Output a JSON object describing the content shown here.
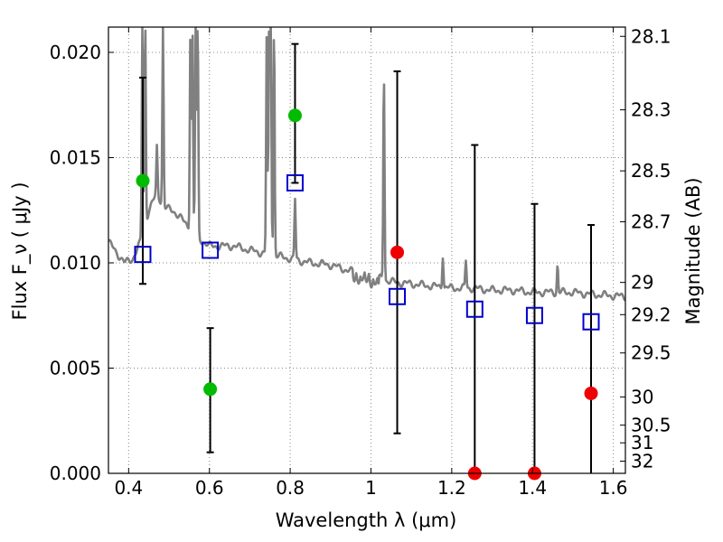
{
  "chart_data": {
    "type": "scatter",
    "xlabel": "Wavelength  λ (μm)",
    "ylabel": "Flux  F_ν  ( μJy )",
    "y2label": "Magnitude (AB)",
    "xlim": [
      0.35,
      1.63
    ],
    "ylim": [
      0.0,
      0.0212
    ],
    "grid": true,
    "x_ticks": [
      0.4,
      0.6,
      0.8,
      1.0,
      1.2,
      1.4,
      1.6
    ],
    "x_tick_labels": [
      "0.4",
      "0.6",
      "0.8",
      "1",
      "1.2",
      "1.4",
      "1.6"
    ],
    "y_ticks": [
      0.0,
      0.005,
      0.01,
      0.015,
      0.02
    ],
    "y_tick_labels": [
      "0.000",
      "0.005",
      "0.010",
      "0.015",
      "0.020"
    ],
    "y2_ticks": [
      {
        "label": "28.1",
        "flux": 0.02076
      },
      {
        "label": "28.3",
        "flux": 0.01727
      },
      {
        "label": "28.5",
        "flux": 0.01437
      },
      {
        "label": "28.7",
        "flux": 0.01195
      },
      {
        "label": "29",
        "flux": 0.00907
      },
      {
        "label": "29.2",
        "flux": 0.00754
      },
      {
        "label": "29.5",
        "flux": 0.00572
      },
      {
        "label": "30",
        "flux": 0.00363
      },
      {
        "label": "30.5",
        "flux": 0.00229
      },
      {
        "label": "31",
        "flux": 0.00145
      },
      {
        "label": "32",
        "flux": 0.00058
      }
    ],
    "colors": {
      "spectrum": "#808080",
      "model_marker": "#0000cc",
      "detection": "#00bb00",
      "low_signal": "#ee0000",
      "errorbar": "#000000",
      "grid": "#888888"
    },
    "spectrum_continuum": [
      [
        0.35,
        0.011
      ],
      [
        0.37,
        0.0105
      ],
      [
        0.39,
        0.01
      ],
      [
        0.41,
        0.0102
      ],
      [
        0.43,
        0.011
      ],
      [
        0.45,
        0.0125
      ],
      [
        0.47,
        0.0133
      ],
      [
        0.49,
        0.0126
      ],
      [
        0.51,
        0.0125
      ],
      [
        0.53,
        0.0121
      ],
      [
        0.55,
        0.0117
      ],
      [
        0.57,
        0.0112
      ],
      [
        0.6,
        0.0108
      ],
      [
        0.63,
        0.0108
      ],
      [
        0.66,
        0.0108
      ],
      [
        0.7,
        0.0106
      ],
      [
        0.75,
        0.0104
      ],
      [
        0.8,
        0.0102
      ],
      [
        0.85,
        0.01
      ],
      [
        0.9,
        0.0099
      ],
      [
        0.95,
        0.0096
      ],
      [
        1.0,
        0.0094
      ],
      [
        1.05,
        0.0091
      ],
      [
        1.1,
        0.009
      ],
      [
        1.15,
        0.0089
      ],
      [
        1.2,
        0.0088
      ],
      [
        1.25,
        0.0088
      ],
      [
        1.3,
        0.0087
      ],
      [
        1.35,
        0.0087
      ],
      [
        1.4,
        0.0086
      ],
      [
        1.45,
        0.0086
      ],
      [
        1.5,
        0.0086
      ],
      [
        1.55,
        0.0085
      ],
      [
        1.63,
        0.0084
      ]
    ],
    "spectrum_emission_lines": [
      {
        "x": 0.434,
        "peak": 0.0212
      },
      {
        "x": 0.441,
        "peak": 0.0215
      },
      {
        "x": 0.47,
        "peak": 0.0155
      },
      {
        "x": 0.485,
        "peak": 0.0212
      },
      {
        "x": 0.553,
        "peak": 0.0212
      },
      {
        "x": 0.558,
        "peak": 0.0212
      },
      {
        "x": 0.566,
        "peak": 0.0212
      },
      {
        "x": 0.571,
        "peak": 0.0212
      },
      {
        "x": 0.742,
        "peak": 0.0212
      },
      {
        "x": 0.748,
        "peak": 0.0212
      },
      {
        "x": 0.752,
        "peak": 0.0212
      },
      {
        "x": 0.76,
        "peak": 0.0212
      },
      {
        "x": 0.812,
        "peak": 0.013
      },
      {
        "x": 1.032,
        "peak": 0.0191
      },
      {
        "x": 1.178,
        "peak": 0.0104
      },
      {
        "x": 1.235,
        "peak": 0.0101
      },
      {
        "x": 1.462,
        "peak": 0.0099
      }
    ],
    "series": [
      {
        "marker": "open-square",
        "x": [
          0.435,
          0.602,
          0.812,
          1.065,
          1.257,
          1.405,
          1.545
        ],
        "values": [
          0.0104,
          0.0106,
          0.0138,
          0.0084,
          0.0078,
          0.0075,
          0.0072
        ]
      },
      {
        "marker": "filled-circle",
        "color": "green",
        "x": [
          0.435,
          0.602,
          0.812
        ],
        "values": [
          0.0139,
          0.004,
          0.017
        ]
      },
      {
        "marker": "filled-circle",
        "color": "red",
        "x": [
          1.065,
          1.257,
          1.405,
          1.545
        ],
        "values": [
          0.0105,
          0.0,
          0.0,
          0.0038
        ]
      }
    ],
    "errorbars": [
      {
        "x": 0.435,
        "low": 0.009,
        "high": 0.0188
      },
      {
        "x": 0.602,
        "low": 0.001,
        "high": 0.0069
      },
      {
        "x": 0.812,
        "low": 0.0138,
        "high": 0.0204
      },
      {
        "x": 1.065,
        "low": 0.0019,
        "high": 0.0191
      },
      {
        "x": 1.257,
        "low": 0.0,
        "high": 0.0156
      },
      {
        "x": 1.405,
        "low": 0.0,
        "high": 0.0128
      },
      {
        "x": 1.545,
        "low": 0.0,
        "high": 0.0118
      }
    ]
  }
}
